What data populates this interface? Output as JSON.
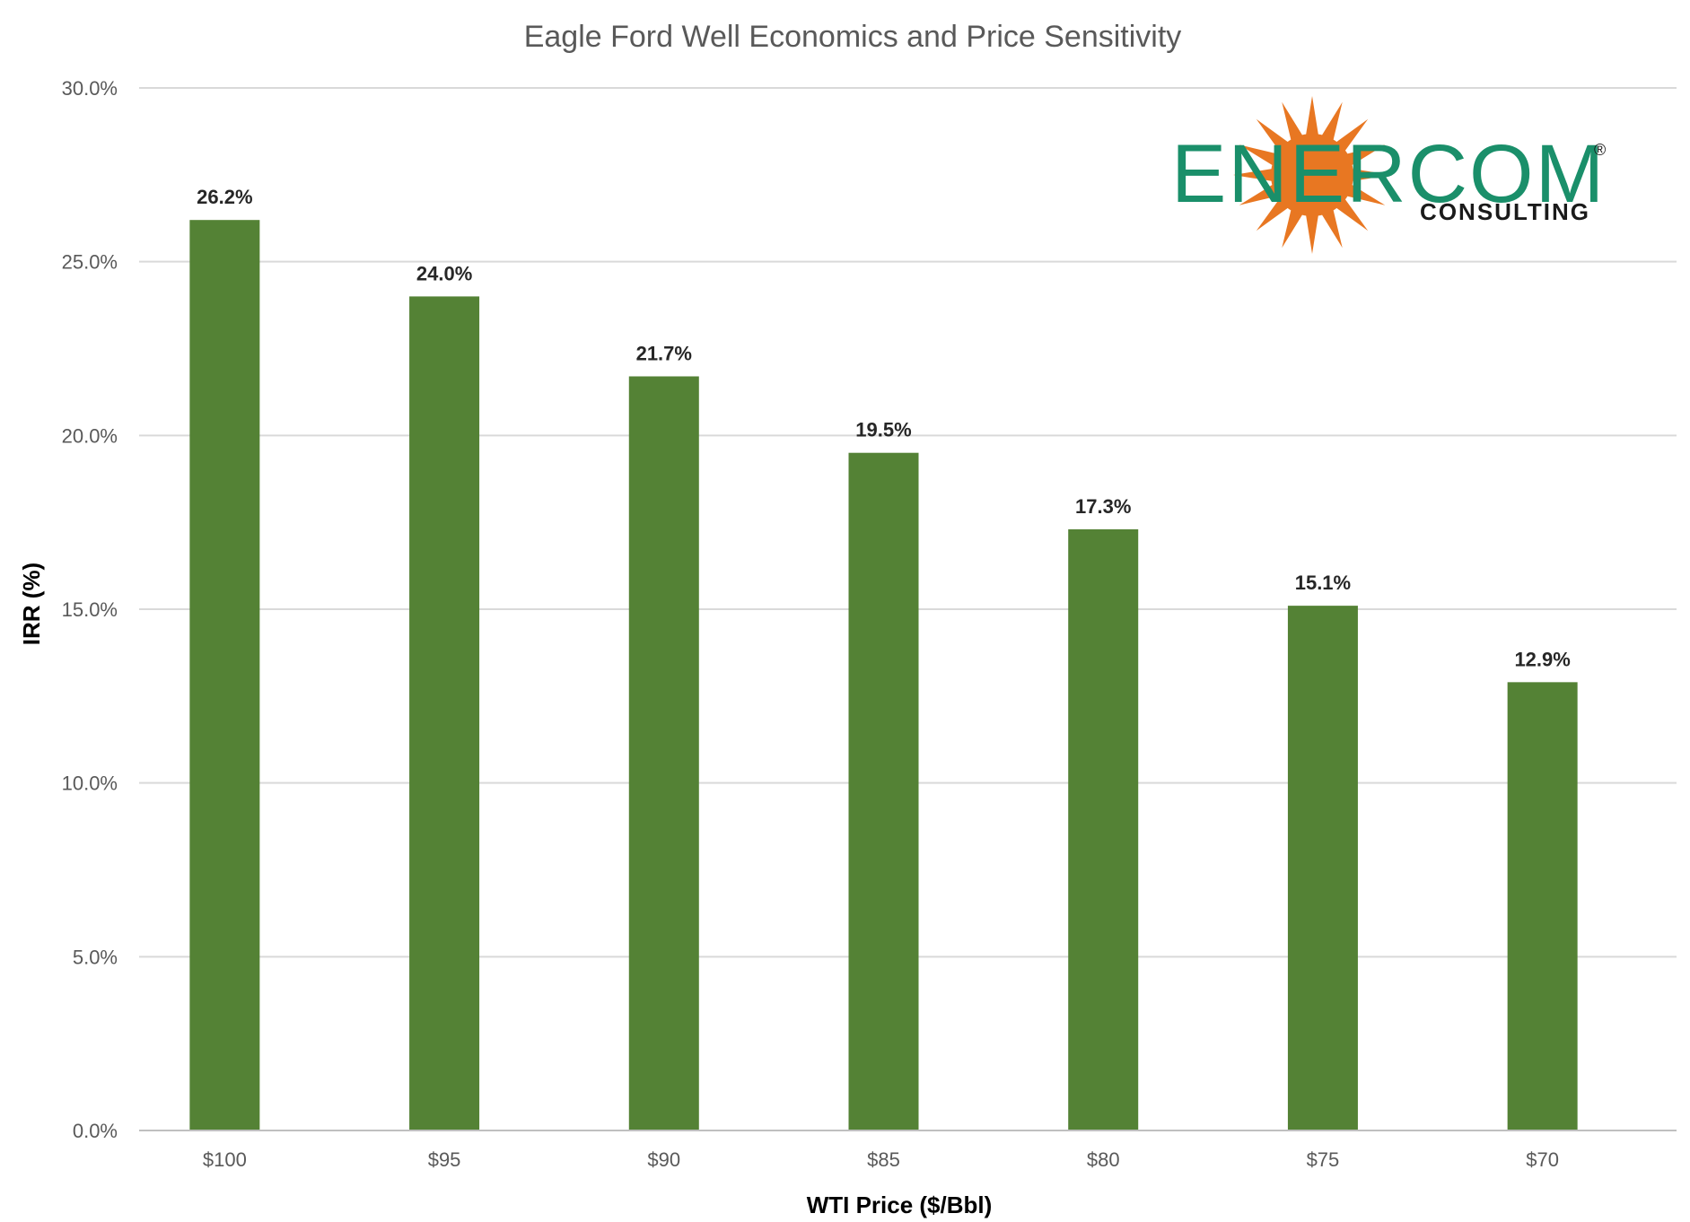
{
  "chart_data": {
    "type": "bar",
    "title": "Eagle Ford Well Economics and Price Sensitivity",
    "xlabel": "WTI Price ($/Bbl)",
    "ylabel": "IRR (%)",
    "categories": [
      "$100",
      "$95",
      "$90",
      "$85",
      "$80",
      "$75",
      "$70"
    ],
    "values": [
      26.2,
      24.0,
      21.7,
      19.5,
      17.3,
      15.1,
      12.9
    ],
    "data_labels": [
      "26.2%",
      "24.0%",
      "21.7%",
      "19.5%",
      "17.3%",
      "15.1%",
      "12.9%"
    ],
    "ylim": [
      0,
      30
    ],
    "yticks": [
      0,
      5,
      10,
      15,
      20,
      25,
      30
    ],
    "ytick_labels": [
      "0.0%",
      "5.0%",
      "10.0%",
      "15.0%",
      "20.0%",
      "25.0%",
      "30.0%"
    ],
    "grid": true,
    "legend": "none",
    "colors": {
      "bar": "#548235",
      "grid": "#d9d9d9",
      "axis": "#bfbfbf"
    }
  },
  "logo": {
    "name": "ENERCOM",
    "sub": "CONSULTING",
    "registered": "®",
    "sun_icon": "sunburst-icon",
    "colors": {
      "text": "#1a8f6a",
      "sun": "#e87722"
    }
  }
}
